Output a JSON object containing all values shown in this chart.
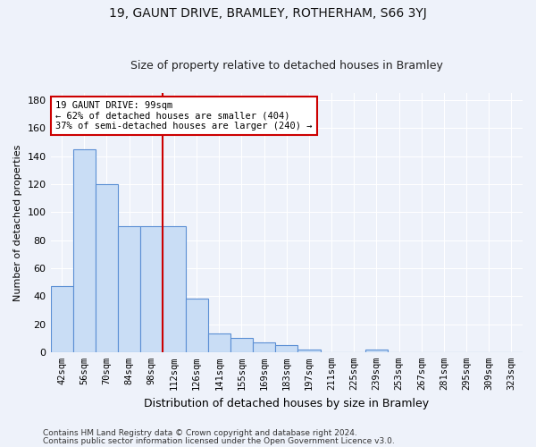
{
  "title": "19, GAUNT DRIVE, BRAMLEY, ROTHERHAM, S66 3YJ",
  "subtitle": "Size of property relative to detached houses in Bramley",
  "xlabel": "Distribution of detached houses by size in Bramley",
  "ylabel": "Number of detached properties",
  "categories": [
    "42sqm",
    "56sqm",
    "70sqm",
    "84sqm",
    "98sqm",
    "112sqm",
    "126sqm",
    "141sqm",
    "155sqm",
    "169sqm",
    "183sqm",
    "197sqm",
    "211sqm",
    "225sqm",
    "239sqm",
    "253sqm",
    "267sqm",
    "281sqm",
    "295sqm",
    "309sqm",
    "323sqm"
  ],
  "values": [
    47,
    145,
    120,
    90,
    90,
    90,
    38,
    13,
    10,
    7,
    5,
    2,
    0,
    0,
    2,
    0,
    0,
    0,
    0,
    0,
    0
  ],
  "bar_color": "#c9ddf5",
  "bar_edge_color": "#5b8fd4",
  "annotation_text": "19 GAUNT DRIVE: 99sqm\n← 62% of detached houses are smaller (404)\n37% of semi-detached houses are larger (240) →",
  "annotation_box_color": "#ffffff",
  "annotation_box_edge": "#cc0000",
  "vline_color": "#cc0000",
  "ylim": [
    0,
    185
  ],
  "yticks": [
    0,
    20,
    40,
    60,
    80,
    100,
    120,
    140,
    160,
    180
  ],
  "footer_line1": "Contains HM Land Registry data © Crown copyright and database right 2024.",
  "footer_line2": "Contains public sector information licensed under the Open Government Licence v3.0.",
  "bg_color": "#eef2fa",
  "grid_color": "#ffffff",
  "title_fontsize": 10,
  "subtitle_fontsize": 9,
  "ylabel_fontsize": 8,
  "xlabel_fontsize": 9,
  "tick_fontsize": 7.5,
  "ytick_fontsize": 8,
  "footer_fontsize": 6.5,
  "annotation_fontsize": 7.5,
  "vline_xindex": 4.5
}
